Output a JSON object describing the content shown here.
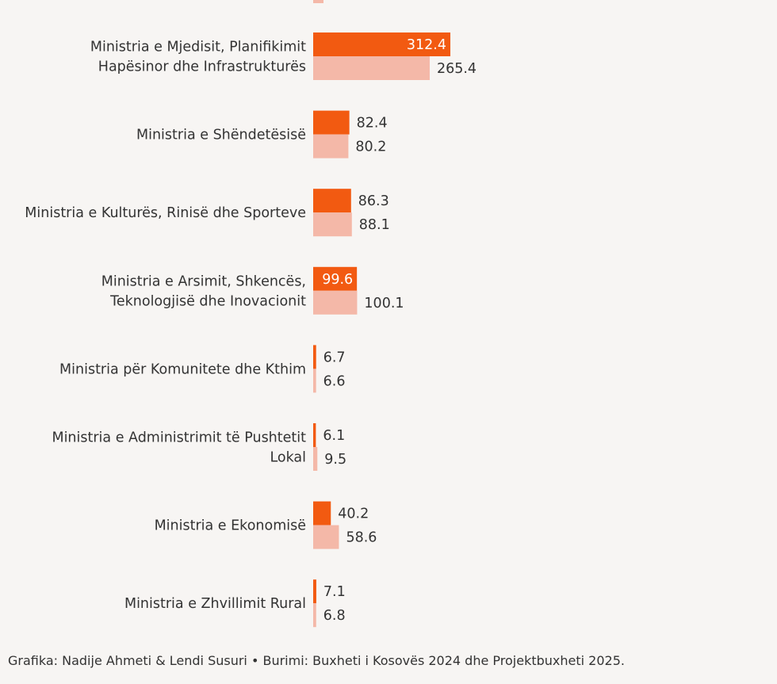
{
  "chart_data": {
    "type": "bar",
    "orientation": "horizontal",
    "categories": [
      [
        "Ministria e Mjedisit, Planifikimit",
        "Hapësinor dhe Infrastrukturës"
      ],
      [
        "Ministria e Shëndetësisë"
      ],
      [
        "Ministria e Kulturës, Rinisë dhe Sporteve"
      ],
      [
        "Ministria e Arsimit, Shkencës,",
        "Teknologjisë dhe Inovacionit"
      ],
      [
        "Ministria për Komunitete dhe Kthim"
      ],
      [
        "Ministria e Administrimit të Pushtetit",
        "Lokal"
      ],
      [
        "Ministria e Ekonomisë"
      ],
      [
        "Ministria e Zhvillimit Rural"
      ]
    ],
    "series": [
      {
        "color": "#f25a11",
        "values": [
          "312.4",
          "82.4",
          "86.3",
          "99.6",
          "6.7",
          "6.1",
          "40.2",
          "7.1"
        ]
      },
      {
        "color": "#f4b8a8",
        "values": [
          "265.4",
          "80.2",
          "88.1",
          "100.1",
          "6.6",
          "9.5",
          "58.6",
          "6.8"
        ]
      }
    ],
    "label_inside": [
      [
        true,
        false,
        false,
        true,
        false,
        false,
        false,
        false
      ],
      [
        false,
        false,
        false,
        false,
        false,
        false,
        false,
        false
      ]
    ]
  },
  "footer": "Grafika: Nadije Ahmeti & Lendi Susuri • Burimi: Buxheti i Kosovës 2024 dhe Projektbuxheti 2025."
}
